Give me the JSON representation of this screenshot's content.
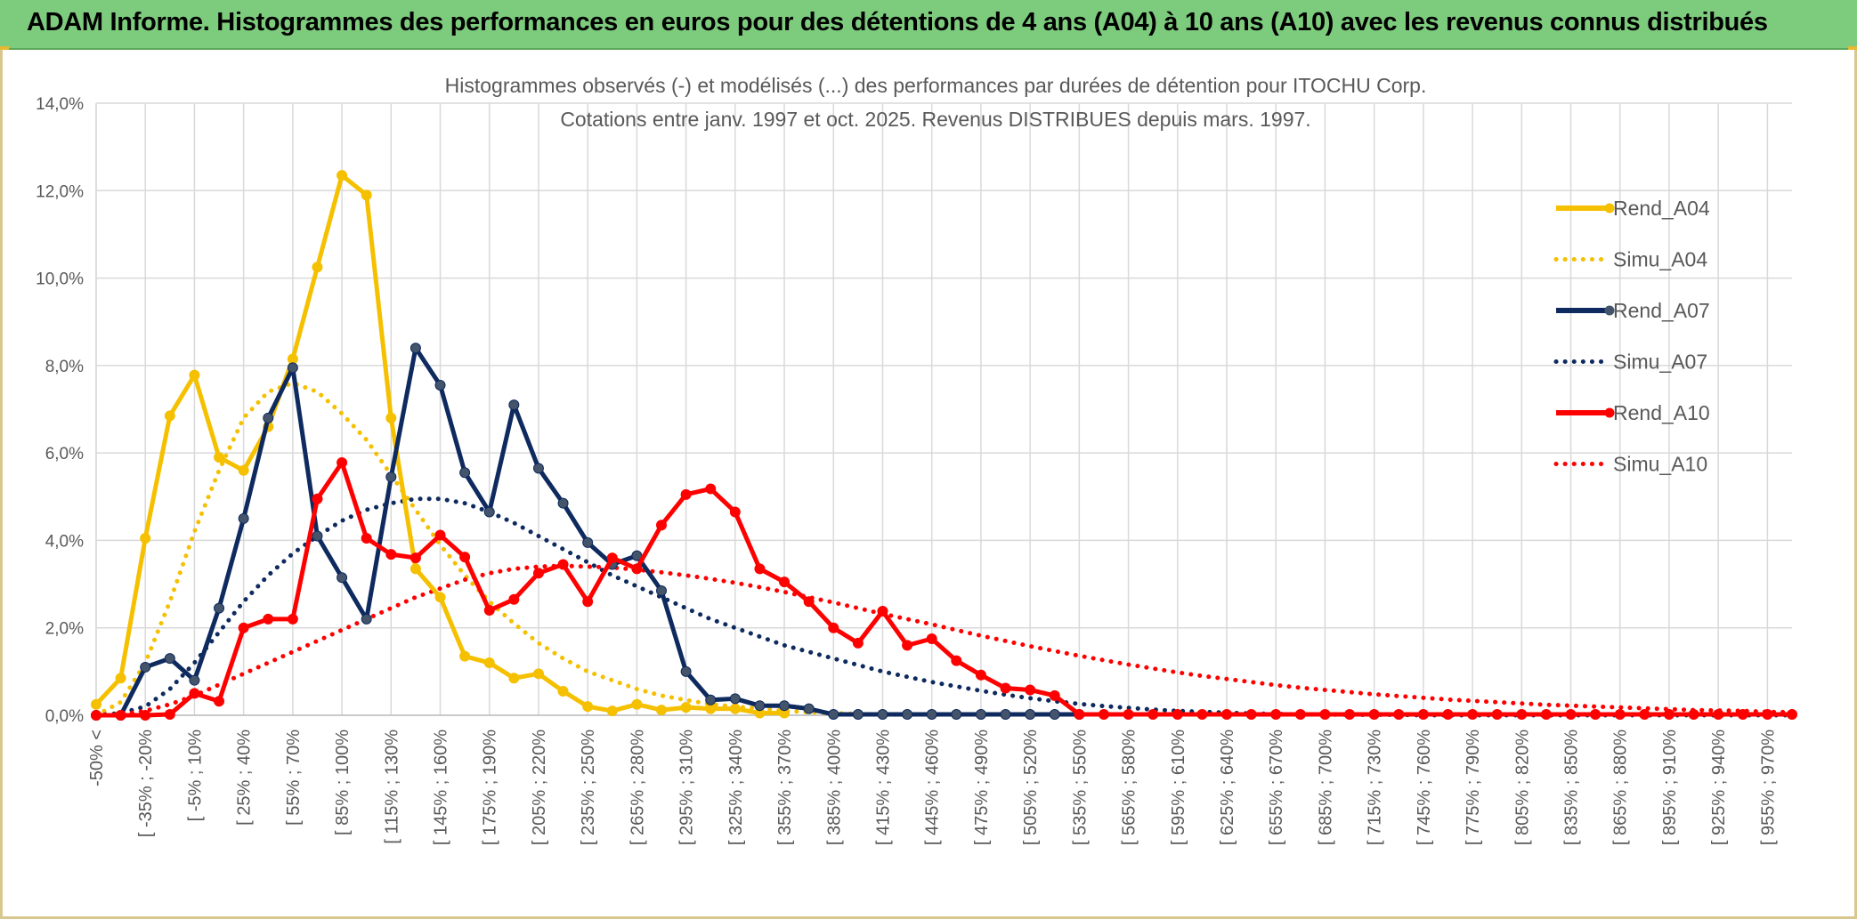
{
  "banner": {
    "title": "ADAM Informe. Histogrammes des performances en euros pour des détentions de 4 ans (A04) à 10 ans (A10) avec les revenus connus distribués"
  },
  "chart_data": {
    "type": "line",
    "title": "Histogrammes observés (-) et modélisés (...) des performances par durées de détention pour ITOCHU Corp.",
    "subtitle": "Cotations entre janv. 1997 et oct. 2025. Revenus DISTRIBUES depuis mars. 1997.",
    "xlabel": "",
    "ylabel": "",
    "ylim": [
      0,
      14
    ],
    "y_ticks": [
      "0,0%",
      "2,0%",
      "4,0%",
      "6,0%",
      "8,0%",
      "10,0%",
      "12,0%",
      "14,0%"
    ],
    "y_tick_values": [
      0,
      2,
      4,
      6,
      8,
      10,
      12,
      14
    ],
    "x_ticks": [
      "-50% <",
      "[ -35% ; -20%",
      "[ -5% ; 10%",
      "[ 25% ; 40%",
      "[ 55% ; 70%",
      "[ 85% ; 100%",
      "[ 115% ; 130%",
      "[ 145% ; 160%",
      "[ 175% ; 190%",
      "[ 205% ; 220%",
      "[ 235% ; 250%",
      "[ 265% ; 280%",
      "[ 295% ; 310%",
      "[ 325% ; 340%",
      "[ 355% ; 370%",
      "[ 385% ; 400%",
      "[ 415% ; 430%",
      "[ 445% ; 460%",
      "[ 475% ; 490%",
      "[ 505% ; 520%",
      "[ 535% ; 550%",
      "[ 565% ; 580%",
      "[ 595% ; 610%",
      "[ 625% ; 640%",
      "[ 655% ; 670%",
      "[ 685% ; 700%",
      "[ 715% ; 730%",
      "[ 745% ; 760%",
      "[ 775% ; 790%",
      "[ 805% ; 820%",
      "[ 835% ; 850%",
      "[ 865% ; 880%",
      "[ 895% ; 910%",
      "[ 925% ; 940%",
      "[ 955% ; 970%"
    ],
    "legend_position": "right",
    "grid": true,
    "series": [
      {
        "name": "Rend_A04",
        "style": "solid",
        "color": "#f5c000",
        "values": [
          0.25,
          0.85,
          4.05,
          6.85,
          7.78,
          5.9,
          5.6,
          6.6,
          8.15,
          10.25,
          12.35,
          11.9,
          6.8,
          3.35,
          2.7,
          1.35,
          1.2,
          0.85,
          0.95,
          0.55,
          0.2,
          0.1,
          0.25,
          0.12,
          0.18,
          0.15,
          0.15,
          0.05,
          0.05
        ]
      },
      {
        "name": "Simu_A04",
        "style": "dotted",
        "color": "#f5c000",
        "values": [
          0.0,
          0.3,
          1.2,
          2.6,
          4.2,
          5.6,
          6.8,
          7.4,
          7.6,
          7.4,
          6.9,
          6.3,
          5.5,
          4.7,
          3.9,
          3.2,
          2.6,
          2.1,
          1.65,
          1.3,
          1.0,
          0.8,
          0.6,
          0.45,
          0.35,
          0.25,
          0.2,
          0.15,
          0.1,
          0.07,
          0.05,
          0.03,
          0.02,
          0.01
        ]
      },
      {
        "name": "Rend_A07",
        "style": "solid",
        "color": "#0e2a5e",
        "values": [
          0,
          0,
          1.1,
          1.3,
          0.8,
          2.45,
          4.5,
          6.8,
          7.95,
          4.1,
          3.15,
          2.2,
          5.45,
          8.4,
          7.55,
          5.55,
          4.65,
          7.1,
          5.65,
          4.85,
          3.95,
          3.45,
          3.65,
          2.85,
          1.0,
          0.35,
          0.38,
          0.22,
          0.22,
          0.15,
          0.02,
          0.02,
          0.02,
          0.02,
          0.02,
          0.02,
          0.02,
          0.02,
          0.02,
          0.02,
          0.02
        ]
      },
      {
        "name": "Simu_A07",
        "style": "dotted",
        "color": "#0e2a5e",
        "values": [
          0.0,
          0.05,
          0.2,
          0.6,
          1.2,
          1.9,
          2.6,
          3.2,
          3.7,
          4.1,
          4.45,
          4.7,
          4.85,
          4.95,
          4.95,
          4.85,
          4.65,
          4.4,
          4.1,
          3.8,
          3.5,
          3.2,
          2.95,
          2.7,
          2.45,
          2.2,
          2.0,
          1.8,
          1.6,
          1.45,
          1.3,
          1.15,
          1.0,
          0.88,
          0.76,
          0.66,
          0.56,
          0.47,
          0.39,
          0.32,
          0.26,
          0.21,
          0.17,
          0.13,
          0.1,
          0.08,
          0.06,
          0.04,
          0.03,
          0.02,
          0.02,
          0.01,
          0.01,
          0.01,
          0.0,
          0.0,
          0.0,
          0.0,
          0.0,
          0.0,
          0.0,
          0.0,
          0.0,
          0.0,
          0.0,
          0.0,
          0.0,
          0.0,
          0.0,
          0.0
        ]
      },
      {
        "name": "Rend_A10",
        "style": "solid",
        "color": "#ff0000",
        "values": [
          0,
          0,
          0,
          0.02,
          0.5,
          0.32,
          2.0,
          2.2,
          2.2,
          4.95,
          5.78,
          4.05,
          3.68,
          3.6,
          4.12,
          3.62,
          2.4,
          2.65,
          3.25,
          3.45,
          2.6,
          3.6,
          3.35,
          4.35,
          5.05,
          5.18,
          4.65,
          3.35,
          3.05,
          2.6,
          2.0,
          1.65,
          2.38,
          1.6,
          1.75,
          1.25,
          0.92,
          0.62,
          0.58,
          0.45,
          0.02,
          0.02,
          0.02,
          0.02,
          0.02,
          0.02,
          0.02,
          0.02,
          0.02,
          0.02,
          0.02,
          0.02,
          0.02,
          0.02,
          0.02,
          0.02,
          0.02,
          0.02,
          0.02,
          0.02,
          0.02,
          0.02,
          0.02,
          0.02,
          0.02,
          0.02,
          0.02,
          0.02,
          0.02,
          0.02
        ]
      },
      {
        "name": "Simu_A10",
        "style": "dotted",
        "color": "#ff0000",
        "values": [
          0.0,
          0.02,
          0.1,
          0.25,
          0.45,
          0.7,
          0.95,
          1.2,
          1.45,
          1.7,
          1.95,
          2.2,
          2.45,
          2.7,
          2.9,
          3.1,
          3.25,
          3.35,
          3.4,
          3.42,
          3.4,
          3.38,
          3.33,
          3.27,
          3.2,
          3.12,
          3.03,
          2.93,
          2.82,
          2.7,
          2.58,
          2.45,
          2.32,
          2.2,
          2.08,
          1.95,
          1.82,
          1.7,
          1.58,
          1.47,
          1.36,
          1.26,
          1.16,
          1.07,
          0.98,
          0.9,
          0.83,
          0.76,
          0.69,
          0.63,
          0.58,
          0.53,
          0.48,
          0.44,
          0.4,
          0.36,
          0.33,
          0.3,
          0.27,
          0.24,
          0.22,
          0.2,
          0.18,
          0.16,
          0.14,
          0.12,
          0.11,
          0.1,
          0.08,
          0.07
        ]
      }
    ]
  }
}
